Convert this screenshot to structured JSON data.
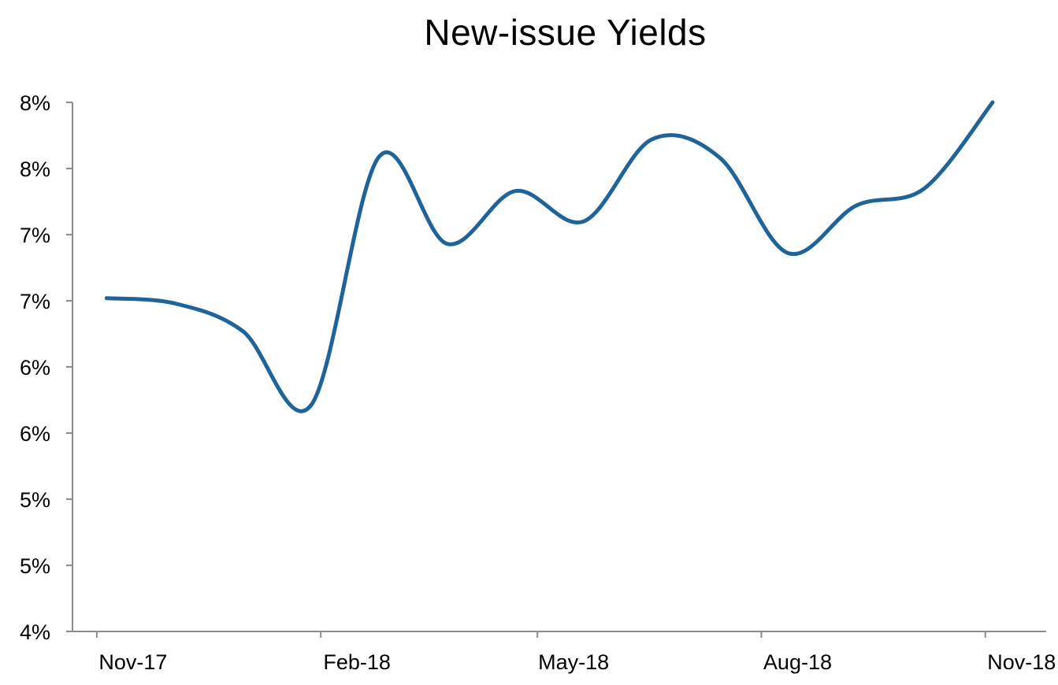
{
  "chart_data": {
    "type": "line",
    "title": "New-issue Yields",
    "xlabel": "",
    "ylabel": "",
    "x_tick_labels": [
      "Nov-17",
      "Feb-18",
      "May-18",
      "Aug-18",
      "Nov-18"
    ],
    "y_tick_labels": [
      "4%",
      "5%",
      "5%",
      "6%",
      "6%",
      "7%",
      "7%",
      "8%",
      "8%"
    ],
    "ylim": [
      4.0,
      8.0
    ],
    "xlim": [
      "2017-10-22",
      "2018-11-26"
    ],
    "grid": false,
    "legend": "none",
    "series": [
      {
        "color": "#1f6499",
        "points": [
          {
            "x": "2017-11-05",
            "y": 6.52
          },
          {
            "x": "2017-12-03",
            "y": 6.48
          },
          {
            "x": "2017-12-31",
            "y": 6.27
          },
          {
            "x": "2018-01-28",
            "y": 5.71
          },
          {
            "x": "2018-02-25",
            "y": 7.59
          },
          {
            "x": "2018-03-25",
            "y": 6.93
          },
          {
            "x": "2018-04-22",
            "y": 7.33
          },
          {
            "x": "2018-05-20",
            "y": 7.1
          },
          {
            "x": "2018-06-17",
            "y": 7.72
          },
          {
            "x": "2018-07-15",
            "y": 7.58
          },
          {
            "x": "2018-08-12",
            "y": 6.86
          },
          {
            "x": "2018-09-09",
            "y": 7.22
          },
          {
            "x": "2018-10-07",
            "y": 7.35
          },
          {
            "x": "2018-11-04",
            "y": 8.0
          }
        ]
      }
    ]
  }
}
